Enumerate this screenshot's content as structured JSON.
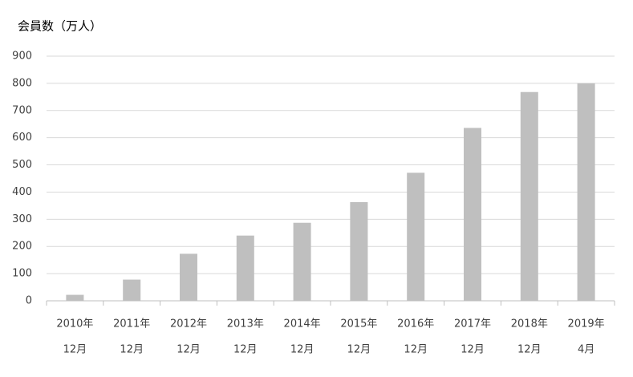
{
  "chart_data": {
    "type": "bar",
    "title": "会員数（万人）",
    "categories": [
      [
        "2010年",
        "12月"
      ],
      [
        "2011年",
        "12月"
      ],
      [
        "2012年",
        "12月"
      ],
      [
        "2013年",
        "12月"
      ],
      [
        "2014年",
        "12月"
      ],
      [
        "2015年",
        "12月"
      ],
      [
        "2016年",
        "12月"
      ],
      [
        "2017年",
        "12月"
      ],
      [
        "2018年",
        "12月"
      ],
      [
        "2019年",
        "4月"
      ]
    ],
    "values": [
      22,
      78,
      173,
      240,
      287,
      363,
      471,
      636,
      768,
      800
    ],
    "color": "#bfbfbf",
    "ylim": [
      0,
      900
    ],
    "yticks": [
      0,
      100,
      200,
      300,
      400,
      500,
      600,
      700,
      800,
      900
    ],
    "grid": true
  }
}
